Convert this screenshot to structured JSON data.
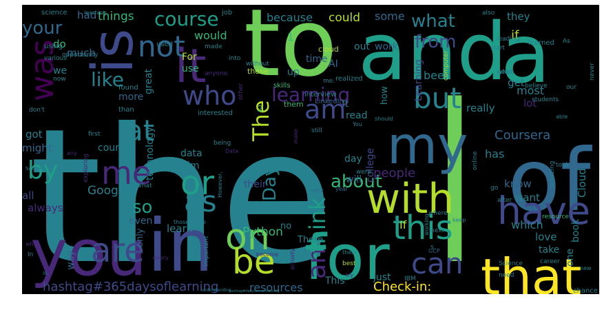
{
  "image": {
    "description_free": true,
    "background": "#000000",
    "page_background": "#ffffff",
    "palette": {
      "deep_purple": "#440154",
      "purple": "#482878",
      "indigo": "#3e4a89",
      "blue": "#31688e",
      "teal": "#26828e",
      "sea": "#1f9e89",
      "green": "#35b779",
      "lime": "#6ece58",
      "yellowgreen": "#b5de2b",
      "yellow": "#fde725"
    }
  },
  "words": [
    {
      "text": "the",
      "color": "teal"
    },
    {
      "text": "I",
      "color": "lime"
    },
    {
      "text": "to",
      "color": "lime"
    },
    {
      "text": "and",
      "color": "sea"
    },
    {
      "text": "a",
      "color": "sea"
    },
    {
      "text": "of",
      "color": "blue"
    },
    {
      "text": "you",
      "color": "purple"
    },
    {
      "text": "in",
      "color": "indigo"
    },
    {
      "text": "for",
      "color": "sea"
    },
    {
      "text": "that",
      "color": "yellow"
    },
    {
      "text": "is",
      "color": "indigo"
    },
    {
      "text": "it",
      "color": "purple"
    },
    {
      "text": "my",
      "color": "blue"
    },
    {
      "text": "with",
      "color": "yellowgreen"
    },
    {
      "text": "have",
      "color": "indigo"
    },
    {
      "text": "on",
      "color": "lime"
    },
    {
      "text": "are",
      "color": "indigo"
    },
    {
      "text": "be",
      "color": "yellowgreen"
    },
    {
      "text": "this",
      "color": "sea"
    },
    {
      "text": "can",
      "color": "indigo"
    },
    {
      "text": "me",
      "color": "purple"
    },
    {
      "text": "or",
      "color": "sea"
    },
    {
      "text": "as",
      "color": "teal"
    },
    {
      "text": "was",
      "color": "deep_purple"
    },
    {
      "text": "not",
      "color": "blue"
    },
    {
      "text": "who",
      "color": "indigo"
    },
    {
      "text": "at",
      "color": "teal"
    },
    {
      "text": "by",
      "color": "sea"
    },
    {
      "text": "am",
      "color": "indigo"
    },
    {
      "text": "but",
      "color": "teal"
    },
    {
      "text": "The",
      "color": "yellowgreen"
    },
    {
      "text": "an",
      "color": "purple"
    },
    {
      "text": "think",
      "color": "sea"
    },
    {
      "text": "course",
      "color": "sea"
    },
    {
      "text": "learning",
      "color": "purple"
    },
    {
      "text": "your",
      "color": "blue"
    },
    {
      "text": "like",
      "color": "teal"
    },
    {
      "text": "from",
      "color": "indigo"
    },
    {
      "text": "what",
      "color": "teal"
    },
    {
      "text": "about",
      "color": "green"
    },
    {
      "text": "Day",
      "color": "teal"
    },
    {
      "text": "so",
      "color": "sea"
    },
    {
      "text": "hashtag#365daysoflearning",
      "color": "indigo"
    },
    {
      "text": "Check-in:",
      "color": "yellow"
    },
    {
      "text": "resources",
      "color": "blue"
    },
    {
      "text": "Coursera",
      "color": "blue"
    },
    {
      "text": "people",
      "color": "purple"
    },
    {
      "text": "Python",
      "color": "green"
    },
    {
      "text": "Google",
      "color": "teal"
    },
    {
      "text": "things",
      "color": "green"
    },
    {
      "text": "had",
      "color": "blue"
    },
    {
      "text": "because",
      "color": "teal"
    },
    {
      "text": "could",
      "color": "yellowgreen"
    },
    {
      "text": "some",
      "color": "blue"
    },
    {
      "text": "they",
      "color": "teal"
    },
    {
      "text": "if",
      "color": "yellowgreen"
    },
    {
      "text": "do",
      "color": "green"
    },
    {
      "text": "much",
      "color": "blue"
    },
    {
      "text": "would",
      "color": "green"
    },
    {
      "text": "out",
      "color": "teal"
    },
    {
      "text": "work",
      "color": "blue"
    },
    {
      "text": "1.",
      "color": "green"
    },
    {
      "text": "time",
      "color": "blue"
    },
    {
      "text": "AI",
      "color": "blue"
    },
    {
      "text": "up",
      "color": "teal"
    },
    {
      "text": "Learning",
      "color": "indigo"
    },
    {
      "text": "been",
      "color": "teal"
    },
    {
      "text": "get",
      "color": "teal"
    },
    {
      "text": "most",
      "color": "teal"
    },
    {
      "text": "lot",
      "color": "purple"
    },
    {
      "text": "really",
      "color": "teal"
    },
    {
      "text": "has",
      "color": "teal"
    },
    {
      "text": "know",
      "color": "blue"
    },
    {
      "text": "want",
      "color": "teal"
    },
    {
      "text": "Cloud",
      "color": "teal"
    },
    {
      "text": "which",
      "color": "teal"
    },
    {
      "text": "love",
      "color": "teal"
    },
    {
      "text": "take",
      "color": "teal"
    },
    {
      "text": "one",
      "color": "teal"
    },
    {
      "text": "book",
      "color": "teal"
    },
    {
      "text": "If",
      "color": "yellowgreen"
    },
    {
      "text": "just",
      "color": "teal"
    },
    {
      "text": "This",
      "color": "teal"
    },
    {
      "text": "learn",
      "color": "teal"
    },
    {
      "text": "even",
      "color": "blue"
    },
    {
      "text": "only",
      "color": "blue"
    },
    {
      "text": "way",
      "color": "blue"
    },
    {
      "text": "all",
      "color": "indigo"
    },
    {
      "text": "always",
      "color": "purple"
    },
    {
      "text": "might",
      "color": "blue"
    },
    {
      "text": "got",
      "color": "teal"
    },
    {
      "text": "courses",
      "color": "teal"
    },
    {
      "text": "data",
      "color": "teal"
    },
    {
      "text": "Tim",
      "color": "teal"
    },
    {
      "text": "technology",
      "color": "teal"
    },
    {
      "text": "great",
      "color": "teal"
    },
    {
      "text": "more",
      "color": "blue"
    },
    {
      "text": "use",
      "color": "green"
    },
    {
      "text": "For",
      "color": "yellowgreen"
    },
    {
      "text": "we",
      "color": "teal"
    },
    {
      "text": "will",
      "color": "blue"
    },
    {
      "text": "their",
      "color": "indigo"
    },
    {
      "text": "college",
      "color": "indigo"
    },
    {
      "text": "day",
      "color": "teal"
    },
    {
      "text": "read",
      "color": "teal"
    },
    {
      "text": "It",
      "color": "teal"
    },
    {
      "text": "how",
      "color": "teal"
    },
    {
      "text": "no",
      "color": "teal"
    },
    {
      "text": "There",
      "color": "teal"
    },
    {
      "text": "science",
      "color": "teal"
    },
    {
      "text": "job",
      "color": "teal"
    },
    {
      "text": "used",
      "color": "teal"
    },
    {
      "text": "using",
      "color": "teal"
    },
    {
      "text": "various",
      "color": "teal"
    },
    {
      "text": "opportunity",
      "color": "teal"
    },
    {
      "text": "now",
      "color": "teal"
    },
    {
      "text": "found",
      "color": "teal"
    },
    {
      "text": "made",
      "color": "teal"
    },
    {
      "text": "into",
      "color": "teal"
    },
    {
      "text": "without",
      "color": "teal"
    },
    {
      "text": "realized",
      "color": "teal"
    },
    {
      "text": "cloud",
      "color": "yellowgreen"
    },
    {
      "text": "anyone",
      "color": "purple"
    },
    {
      "text": "these",
      "color": "yellowgreen"
    },
    {
      "text": "skills",
      "color": "green"
    },
    {
      "text": "other",
      "color": "purple"
    },
    {
      "text": "interview",
      "color": "teal"
    },
    {
      "text": "me.",
      "color": "teal"
    },
    {
      "text": "2.",
      "color": "green"
    },
    {
      "text": "them",
      "color": "green"
    },
    {
      "text": "LinkedIn",
      "color": "blue"
    },
    {
      "text": "interested",
      "color": "teal"
    },
    {
      "text": "don't",
      "color": "teal"
    },
    {
      "text": "than",
      "color": "teal"
    },
    {
      "text": "also",
      "color": "teal"
    },
    {
      "text": "reading",
      "color": "teal"
    },
    {
      "text": "start",
      "color": "teal"
    },
    {
      "text": "As",
      "color": "teal"
    },
    {
      "text": "learned",
      "color": "teal"
    },
    {
      "text": "never",
      "color": "teal"
    },
    {
      "text": "computer",
      "color": "yellowgreen"
    },
    {
      "text": "good",
      "color": "teal"
    },
    {
      "text": "when",
      "color": "teal"
    },
    {
      "text": "believe",
      "color": "teal"
    },
    {
      "text": "our",
      "color": "teal"
    },
    {
      "text": "students",
      "color": "teal"
    },
    {
      "text": "able",
      "color": "teal"
    },
    {
      "text": "should",
      "color": "teal"
    },
    {
      "text": "You",
      "color": "teal"
    },
    {
      "text": "still",
      "color": "teal"
    },
    {
      "text": "online",
      "color": "teal"
    },
    {
      "text": "make",
      "color": "purple"
    },
    {
      "text": "were",
      "color": "teal"
    },
    {
      "text": "took",
      "color": "teal"
    },
    {
      "text": "amazing",
      "color": "teal"
    },
    {
      "text": "go",
      "color": "teal"
    },
    {
      "text": "after",
      "color": "teal"
    },
    {
      "text": "being",
      "color": "teal"
    },
    {
      "text": "first",
      "color": "teal"
    },
    {
      "text": "any",
      "color": "purple"
    },
    {
      "text": "Data",
      "color": "purple"
    },
    {
      "text": "However,",
      "color": "teal"
    },
    {
      "text": "very",
      "color": "blue"
    },
    {
      "text": "year",
      "color": "blue"
    },
    {
      "text": "exploring",
      "color": "purple"
    },
    {
      "text": "What",
      "color": "teal"
    },
    {
      "text": "those",
      "color": "teal"
    },
    {
      "text": "see",
      "color": "teal"
    },
    {
      "text": "important",
      "color": "teal"
    },
    {
      "text": "become",
      "color": "purple"
    },
    {
      "text": "actually",
      "color": "purple"
    },
    {
      "text": "understanding",
      "color": "teal"
    },
    {
      "text": "hashtag#dailydoseoflearning",
      "color": "teal"
    },
    {
      "text": "every",
      "color": "purple"
    },
    {
      "text": "In",
      "color": "teal"
    },
    {
      "text": "why",
      "color": "purple"
    },
    {
      "text": "is.",
      "color": "teal"
    },
    {
      "text": "4.",
      "color": "teal"
    },
    {
      "text": "3.",
      "color": "teal"
    },
    {
      "text": "where",
      "color": "teal"
    },
    {
      "text": "keep",
      "color": "teal"
    },
    {
      "text": "working",
      "color": "teal"
    },
    {
      "text": "next",
      "color": "teal"
    },
    {
      "text": "Science",
      "color": "teal"
    },
    {
      "text": "best",
      "color": "yellowgreen"
    },
    {
      "text": "try",
      "color": "purple"
    },
    {
      "text": "IBM",
      "color": "teal"
    },
    {
      "text": "need",
      "color": "teal"
    },
    {
      "text": "chance",
      "color": "teal"
    },
    {
      "text": "new",
      "color": "teal"
    },
    {
      "text": "career",
      "color": "teal"
    },
    {
      "text": "resource",
      "color": "green"
    },
    {
      "text": "GCP",
      "color": "blue"
    },
    {
      "text": "learning.",
      "color": "teal"
    },
    {
      "text": "5.",
      "color": "teal"
    },
    {
      "text": "School",
      "color": "teal"
    },
    {
      "text": "there",
      "color": "teal"
    }
  ]
}
